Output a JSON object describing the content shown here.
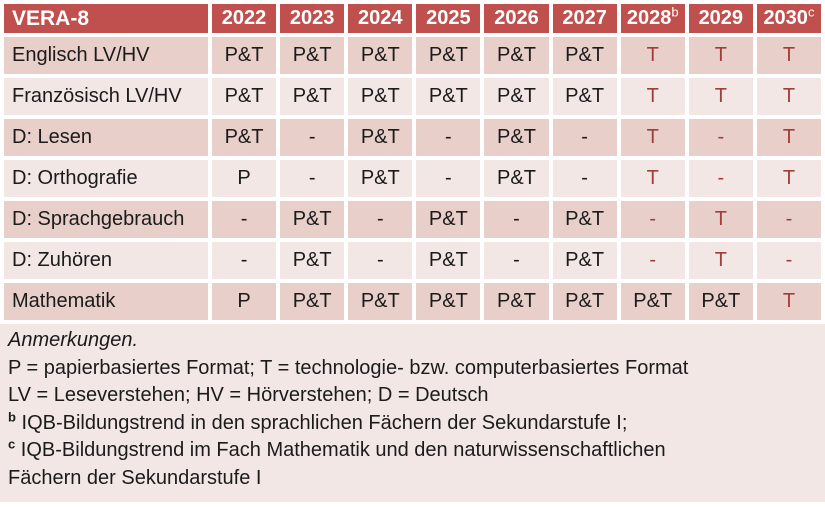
{
  "colors": {
    "header_bg": "#C0504D",
    "header_text": "#FFFFFF",
    "band_dark": "#E8CFCA",
    "band_light": "#F2E7E4",
    "notes_bg": "#F2E7E4",
    "accent_red": "#A03E3A",
    "text": "#1B1B1B"
  },
  "table": {
    "corner_label": "VERA-8",
    "years": [
      {
        "label": "2022",
        "sup": ""
      },
      {
        "label": "2023",
        "sup": ""
      },
      {
        "label": "2024",
        "sup": ""
      },
      {
        "label": "2025",
        "sup": ""
      },
      {
        "label": "2026",
        "sup": ""
      },
      {
        "label": "2027",
        "sup": ""
      },
      {
        "label": "2028",
        "sup": "b"
      },
      {
        "label": "2029",
        "sup": ""
      },
      {
        "label": "2030",
        "sup": "c"
      }
    ],
    "rows": [
      {
        "label": "Englisch LV/HV",
        "cells": [
          {
            "v": "P&T",
            "red": false
          },
          {
            "v": "P&T",
            "red": false
          },
          {
            "v": "P&T",
            "red": false
          },
          {
            "v": "P&T",
            "red": false
          },
          {
            "v": "P&T",
            "red": false
          },
          {
            "v": "P&T",
            "red": false
          },
          {
            "v": "T",
            "red": true
          },
          {
            "v": "T",
            "red": true
          },
          {
            "v": "T",
            "red": true
          }
        ]
      },
      {
        "label": "Französisch LV/HV",
        "cells": [
          {
            "v": "P&T",
            "red": false
          },
          {
            "v": "P&T",
            "red": false
          },
          {
            "v": "P&T",
            "red": false
          },
          {
            "v": "P&T",
            "red": false
          },
          {
            "v": "P&T",
            "red": false
          },
          {
            "v": "P&T",
            "red": false
          },
          {
            "v": "T",
            "red": true
          },
          {
            "v": "T",
            "red": true
          },
          {
            "v": "T",
            "red": true
          }
        ]
      },
      {
        "label": "D: Lesen",
        "cells": [
          {
            "v": "P&T",
            "red": false
          },
          {
            "v": "-",
            "red": false
          },
          {
            "v": "P&T",
            "red": false
          },
          {
            "v": "-",
            "red": false
          },
          {
            "v": "P&T",
            "red": false
          },
          {
            "v": "-",
            "red": false
          },
          {
            "v": "T",
            "red": true
          },
          {
            "v": "-",
            "red": true
          },
          {
            "v": "T",
            "red": true
          }
        ]
      },
      {
        "label": "D: Orthografie",
        "cells": [
          {
            "v": "P",
            "red": false
          },
          {
            "v": "-",
            "red": false
          },
          {
            "v": "P&T",
            "red": false
          },
          {
            "v": "-",
            "red": false
          },
          {
            "v": "P&T",
            "red": false
          },
          {
            "v": "-",
            "red": false
          },
          {
            "v": "T",
            "red": true
          },
          {
            "v": "-",
            "red": true
          },
          {
            "v": "T",
            "red": true
          }
        ]
      },
      {
        "label": "D: Sprachgebrauch",
        "cells": [
          {
            "v": "-",
            "red": false
          },
          {
            "v": "P&T",
            "red": false
          },
          {
            "v": "-",
            "red": false
          },
          {
            "v": "P&T",
            "red": false
          },
          {
            "v": "-",
            "red": false
          },
          {
            "v": "P&T",
            "red": false
          },
          {
            "v": "-",
            "red": true
          },
          {
            "v": "T",
            "red": true
          },
          {
            "v": "-",
            "red": true
          }
        ]
      },
      {
        "label": "D: Zuhören",
        "cells": [
          {
            "v": "-",
            "red": false
          },
          {
            "v": "P&T",
            "red": false
          },
          {
            "v": "-",
            "red": false
          },
          {
            "v": "P&T",
            "red": false
          },
          {
            "v": "-",
            "red": false
          },
          {
            "v": "P&T",
            "red": false
          },
          {
            "v": "-",
            "red": true
          },
          {
            "v": "T",
            "red": true
          },
          {
            "v": "-",
            "red": true
          }
        ]
      },
      {
        "label": "Mathematik",
        "cells": [
          {
            "v": "P",
            "red": false
          },
          {
            "v": "P&T",
            "red": false
          },
          {
            "v": "P&T",
            "red": false
          },
          {
            "v": "P&T",
            "red": false
          },
          {
            "v": "P&T",
            "red": false
          },
          {
            "v": "P&T",
            "red": false
          },
          {
            "v": "P&T",
            "red": false
          },
          {
            "v": "P&T",
            "red": false
          },
          {
            "v": "T",
            "red": true
          }
        ]
      }
    ]
  },
  "notes": {
    "heading": "Anmerkungen.",
    "formats": "P = papierbasiertes Format; T = technologie- bzw. computerbasiertes Format",
    "abbreviations": "LV = Leseverstehen; HV = Hörverstehen; D = Deutsch",
    "b": {
      "sup": "b",
      "text": "IQB-Bildungstrend in den sprachlichen Fächern der Sekundarstufe I;"
    },
    "c": {
      "sup": "c",
      "text": "IQB-Bildungstrend im Fach Mathematik und den naturwissenschaftlichen Fächern der Sekundarstufe I"
    }
  }
}
